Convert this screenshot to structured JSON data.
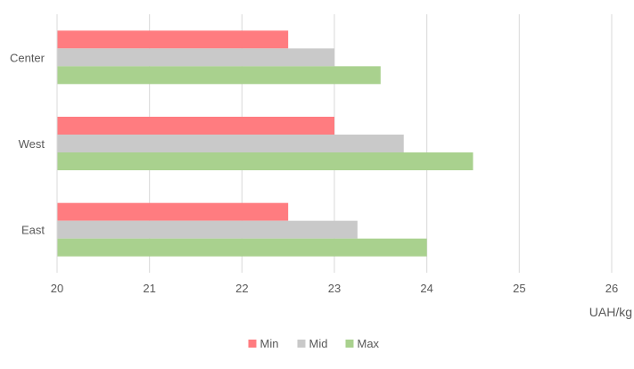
{
  "chart_data": {
    "type": "bar",
    "orientation": "horizontal",
    "categories": [
      "East",
      "West",
      "Center"
    ],
    "series": [
      {
        "name": "Min",
        "color": "#ff7c80",
        "values": [
          22.5,
          23.0,
          22.5
        ]
      },
      {
        "name": "Mid",
        "color": "#c9c9c9",
        "values": [
          23.25,
          23.75,
          23.0
        ]
      },
      {
        "name": "Max",
        "color": "#a9d18e",
        "values": [
          24.0,
          24.5,
          23.5
        ]
      }
    ],
    "xlabel": "UAH/kg",
    "xlim": [
      20,
      26
    ],
    "xticks": [
      "20",
      "21",
      "22",
      "23",
      "24",
      "25",
      "26"
    ],
    "grid": "vertical",
    "legend_position": "bottom"
  }
}
